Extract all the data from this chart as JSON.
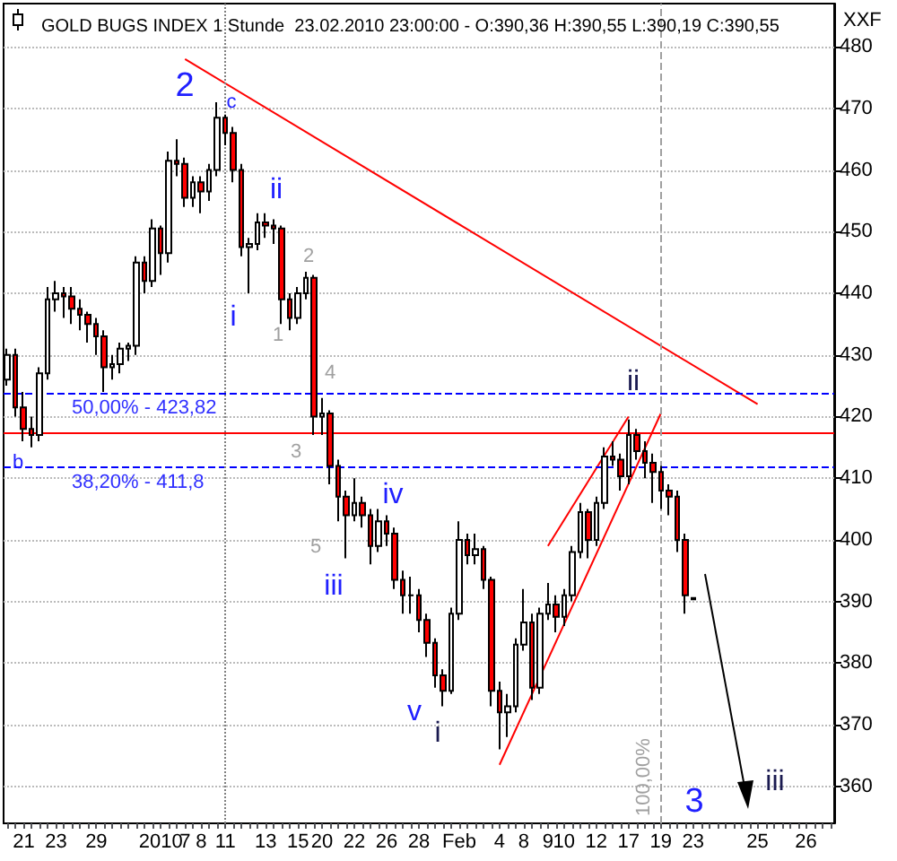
{
  "chart_data": {
    "type": "candlestick",
    "title": "GOLD BUGS INDEX 1 Stunde  23.02.2010 23:00:00 - O:390,36 H:390,55 L:390,19 C:390,55",
    "subtitle": "XXF",
    "categories": [
      null,
      null,
      "21",
      null,
      null,
      null,
      "23",
      null,
      null,
      null,
      null,
      "29",
      null,
      null,
      null,
      null,
      null,
      null,
      null,
      "2010",
      null,
      null,
      "7",
      null,
      "8",
      null,
      null,
      "11",
      null,
      null,
      null,
      null,
      "13",
      null,
      null,
      null,
      "15",
      null,
      null,
      "20",
      null,
      null,
      null,
      "22",
      null,
      null,
      null,
      "26",
      null,
      null,
      null,
      "28",
      null,
      null,
      null,
      null,
      "Feb",
      null,
      null,
      null,
      null,
      "4",
      null,
      null,
      "8",
      null,
      null,
      "9",
      null,
      "10",
      null,
      null,
      null,
      "12",
      null,
      null,
      null,
      "17",
      null,
      null,
      null,
      "19",
      null,
      null,
      null,
      "23",
      null,
      null,
      null,
      null,
      null,
      null,
      null,
      "25",
      null,
      null,
      null,
      null,
      null,
      "26",
      null,
      null,
      null
    ],
    "ohlc": [
      [
        426,
        431,
        425,
        430
      ],
      [
        430,
        431,
        420,
        421.5
      ],
      [
        421.5,
        424,
        416,
        418
      ],
      [
        418,
        420,
        415,
        417
      ],
      [
        417,
        428,
        416,
        427
      ],
      [
        427,
        441,
        426,
        439
      ],
      [
        439,
        442,
        437,
        440
      ],
      [
        440,
        441,
        436,
        439.5
      ],
      [
        439.5,
        441,
        435,
        437.5
      ],
      [
        437.5,
        439,
        434,
        436.5
      ],
      [
        436.5,
        437,
        432,
        435
      ],
      [
        435,
        436,
        430,
        433
      ],
      [
        433,
        434,
        424,
        428
      ],
      [
        428,
        430,
        426,
        428.5
      ],
      [
        428.5,
        432,
        427,
        431
      ],
      [
        431,
        432,
        429,
        431.5
      ],
      [
        431.5,
        446,
        430,
        445
      ],
      [
        445,
        446,
        440,
        442
      ],
      [
        442,
        452,
        441,
        450.5
      ],
      [
        450.5,
        451,
        443,
        446.5
      ],
      [
        446.5,
        463,
        445,
        461.5
      ],
      [
        461.5,
        465,
        459,
        461
      ],
      [
        461,
        462,
        454,
        455.5
      ],
      [
        455.5,
        459,
        454,
        458
      ],
      [
        458,
        459,
        453,
        456.5
      ],
      [
        456.5,
        461,
        455,
        460
      ],
      [
        460,
        471,
        459,
        468.5
      ],
      [
        468.5,
        469,
        464,
        466
      ],
      [
        466,
        467,
        458,
        460
      ],
      [
        460,
        461,
        446,
        447.5
      ],
      [
        447.5,
        449,
        440,
        448
      ],
      [
        448,
        453,
        447,
        451.5
      ],
      [
        451.5,
        453,
        449,
        451
      ],
      [
        451,
        452,
        448,
        450.5
      ],
      [
        450.5,
        451,
        435,
        439
      ],
      [
        439,
        440,
        434,
        436
      ],
      [
        436,
        441,
        435,
        440
      ],
      [
        440,
        443.5,
        439,
        442.5
      ],
      [
        442.5,
        443,
        417,
        420
      ],
      [
        420,
        423,
        417,
        420.5
      ],
      [
        420.5,
        421,
        409,
        412
      ],
      [
        412,
        413,
        403,
        407
      ],
      [
        407,
        408,
        397,
        404
      ],
      [
        404,
        410,
        403,
        406
      ],
      [
        406,
        407,
        402,
        404
      ],
      [
        404,
        405,
        396,
        399
      ],
      [
        399,
        405,
        398,
        403
      ],
      [
        403,
        404,
        399,
        401
      ],
      [
        401,
        402,
        392,
        393.5
      ],
      [
        393.5,
        395,
        388,
        391
      ],
      [
        391,
        394,
        388,
        391
      ],
      [
        391,
        392,
        385,
        387
      ],
      [
        387,
        388,
        381,
        383.3
      ],
      [
        383.3,
        384,
        376,
        378
      ],
      [
        378,
        379,
        373,
        375.5
      ],
      [
        375.5,
        389,
        375,
        388
      ],
      [
        388,
        403,
        387,
        400
      ],
      [
        400,
        401,
        396,
        397.5
      ],
      [
        397.5,
        401,
        396,
        398.5
      ],
      [
        398.5,
        399,
        392,
        393.5
      ],
      [
        393.5,
        394,
        373,
        375.5
      ],
      [
        375.5,
        377,
        366,
        372
      ],
      [
        372,
        375,
        368,
        373
      ],
      [
        373,
        384,
        372,
        383
      ],
      [
        383,
        392,
        382,
        386.6
      ],
      [
        386.6,
        388,
        374,
        376
      ],
      [
        376,
        389,
        375,
        388
      ],
      [
        388,
        393,
        387,
        389.5
      ],
      [
        389.5,
        391,
        385,
        387.5
      ],
      [
        387.5,
        392,
        386,
        391
      ],
      [
        391,
        399,
        390,
        398
      ],
      [
        398,
        406,
        397,
        404.5
      ],
      [
        404.5,
        405,
        397,
        400
      ],
      [
        400,
        407,
        399,
        406
      ],
      [
        406,
        415,
        405,
        413.5
      ],
      [
        413.5,
        416,
        412,
        413
      ],
      [
        413,
        414,
        408,
        410.3
      ],
      [
        410.3,
        419.5,
        409,
        417
      ],
      [
        417,
        418,
        413,
        414.4
      ],
      [
        414.4,
        416,
        410,
        412.5
      ],
      [
        412.5,
        414,
        406,
        411
      ],
      [
        411,
        412,
        405,
        408
      ],
      [
        408,
        409,
        404,
        407
      ],
      [
        407,
        408,
        398,
        400
      ],
      [
        400,
        401,
        388,
        391
      ],
      [
        390.36,
        390.55,
        390.19,
        390.55
      ],
      null,
      null,
      null,
      null,
      null,
      null,
      null,
      null,
      null,
      null,
      null,
      null,
      null,
      null,
      null,
      null,
      null
    ],
    "series": [
      {
        "type": "line",
        "x": [
          "7",
          "25"
        ],
        "values": [
          478,
          422
        ],
        "color": "#ff0000"
      },
      {
        "type": "line",
        "x": [
          "4",
          "19"
        ],
        "values": [
          363.5,
          420.5
        ],
        "color": "#ff0000"
      },
      {
        "type": "line",
        "x": [
          "9",
          "17"
        ],
        "values": [
          399,
          420
        ],
        "color": "#ff0000"
      }
    ],
    "marker": "none",
    "ylim": [
      354,
      487
    ],
    "yticks": [
      360,
      370,
      380,
      390,
      400,
      410,
      420,
      430,
      440,
      450,
      460,
      470,
      480
    ],
    "grid": "y",
    "ref_lines": [
      {
        "axis": "y",
        "value": 423.82,
        "color": "#0000ff",
        "line_style": "dashed"
      },
      {
        "axis": "y",
        "value": 411.8,
        "color": "#0000ff",
        "line_style": "dashed"
      },
      {
        "axis": "y",
        "value": 417.3,
        "color": "#ff0000",
        "line_style": "solid"
      },
      {
        "axis": "x",
        "value": "19",
        "label": "100,00%",
        "color": "#a0a0a0",
        "line_style": "dashed"
      },
      {
        "axis": "x",
        "value": "11",
        "color": "#808080",
        "line_style": "dotted"
      }
    ],
    "annotations": [
      "2",
      "c",
      "ii",
      "i",
      "1",
      "2",
      "4",
      "3",
      "5",
      "iii",
      "iv",
      "v",
      "i",
      "ii",
      "3",
      "iii",
      "b",
      {
        "text": "50,00% - 423,82",
        "y": 423.82
      },
      {
        "text": "38,20% - 411,8",
        "y": 411.8
      }
    ]
  }
}
